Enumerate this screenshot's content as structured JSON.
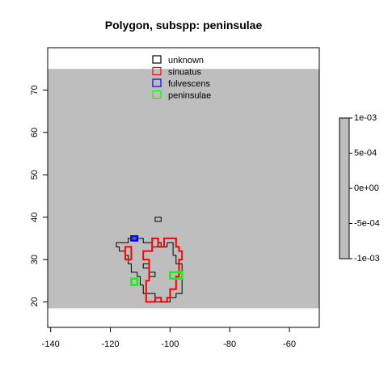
{
  "chart_data": {
    "type": "map",
    "title": "Polygon, subspp: peninsulae",
    "xlim": [
      -141,
      -50
    ],
    "ylim": [
      14,
      80
    ],
    "xticks": [
      -140,
      -120,
      -100,
      -80,
      -60
    ],
    "yticks": [
      20,
      30,
      40,
      50,
      60,
      70
    ],
    "raster_extent": {
      "x": [
        -141,
        -50
      ],
      "y": [
        18.5,
        75
      ]
    },
    "raster_color": "#bebebe",
    "legend": {
      "position": "top-center",
      "entries": [
        {
          "label": "unknown",
          "color": "#000000"
        },
        {
          "label": "sinuatus",
          "color": "#ff0000"
        },
        {
          "label": "fulvescens",
          "color": "#0000ff"
        },
        {
          "label": "peninsulae",
          "color": "#00ff00"
        }
      ]
    },
    "colorbar": {
      "labels": [
        "1e-03",
        "5e-04",
        "0e+00",
        "-5e-04",
        "-1e-03"
      ],
      "values": [
        0.001,
        0.0005,
        0,
        -0.0005,
        -0.001
      ],
      "color": "#bebebe"
    },
    "series": [
      {
        "name": "unknown",
        "color": "#000000",
        "lineWidth": 1,
        "polygons": [
          [
            [
              -118,
              34
            ],
            [
              -114,
              34
            ],
            [
              -114,
              35
            ],
            [
              -109,
              35
            ],
            [
              -109,
              34
            ],
            [
              -106,
              34
            ],
            [
              -106,
              33
            ],
            [
              -104,
              33
            ],
            [
              -104,
              34
            ],
            [
              -103,
              34
            ],
            [
              -103,
              33
            ],
            [
              -101,
              33
            ],
            [
              -101,
              34
            ],
            [
              -99,
              34
            ],
            [
              -99,
              31
            ],
            [
              -98,
              31
            ],
            [
              -98,
              29
            ],
            [
              -96,
              29
            ],
            [
              -96,
              22
            ],
            [
              -98,
              22
            ],
            [
              -98,
              21
            ],
            [
              -100,
              21
            ],
            [
              -100,
              20
            ],
            [
              -105,
              20
            ],
            [
              -105,
              22
            ],
            [
              -109,
              22
            ],
            [
              -109,
              24
            ],
            [
              -110,
              24
            ],
            [
              -110,
              26
            ],
            [
              -111,
              26
            ],
            [
              -111,
              27
            ],
            [
              -113,
              27
            ],
            [
              -113,
              29
            ],
            [
              -114,
              29
            ],
            [
              -114,
              31
            ],
            [
              -115,
              31
            ],
            [
              -115,
              32
            ],
            [
              -117,
              32
            ],
            [
              -117,
              33
            ],
            [
              -118,
              33
            ]
          ],
          [
            [
              -105,
              40
            ],
            [
              -103,
              40
            ],
            [
              -103,
              39
            ],
            [
              -105,
              39
            ]
          ],
          [
            [
              -109,
              29
            ],
            [
              -107,
              29
            ],
            [
              -107,
              28
            ],
            [
              -109,
              28
            ]
          ],
          [
            [
              -107,
              27
            ],
            [
              -105,
              27
            ],
            [
              -105,
              26
            ],
            [
              -107,
              26
            ]
          ]
        ]
      },
      {
        "name": "sinuatus",
        "color": "#ff0000",
        "lineWidth": 2,
        "polygons": [
          [
            [
              -106,
              35
            ],
            [
              -104,
              35
            ],
            [
              -104,
              33
            ],
            [
              -102,
              33
            ],
            [
              -102,
              35
            ],
            [
              -98,
              35
            ],
            [
              -98,
              33
            ],
            [
              -97,
              33
            ],
            [
              -97,
              32
            ],
            [
              -96,
              32
            ],
            [
              -96,
              30
            ],
            [
              -97,
              30
            ],
            [
              -97,
              26
            ],
            [
              -98,
              26
            ],
            [
              -98,
              23
            ],
            [
              -100,
              23
            ],
            [
              -100,
              21
            ],
            [
              -101,
              21
            ],
            [
              -101,
              20
            ],
            [
              -103,
              20
            ],
            [
              -103,
              21
            ],
            [
              -105,
              21
            ],
            [
              -105,
              20
            ],
            [
              -108,
              20
            ],
            [
              -108,
              25
            ],
            [
              -107,
              25
            ],
            [
              -107,
              30
            ],
            [
              -109,
              30
            ],
            [
              -109,
              32
            ],
            [
              -106,
              32
            ]
          ],
          [
            [
              -115,
              33
            ],
            [
              -113,
              33
            ],
            [
              -113,
              30
            ],
            [
              -115,
              30
            ]
          ]
        ]
      },
      {
        "name": "fulvescens",
        "color": "#0000ff",
        "lineWidth": 2.5,
        "polygons": [
          [
            [
              -113,
              35.5
            ],
            [
              -111,
              35.5
            ],
            [
              -111,
              34.5
            ],
            [
              -113,
              34.5
            ]
          ]
        ]
      },
      {
        "name": "peninsulae",
        "color": "#00ff00",
        "lineWidth": 2.5,
        "polygons": [
          [
            [
              -113,
              25.5
            ],
            [
              -111,
              25.5
            ],
            [
              -111,
              24
            ],
            [
              -113,
              24
            ]
          ],
          [
            [
              -100,
              27
            ],
            [
              -96,
              27
            ],
            [
              -96,
              25.5
            ],
            [
              -100,
              25.5
            ]
          ]
        ]
      }
    ]
  }
}
